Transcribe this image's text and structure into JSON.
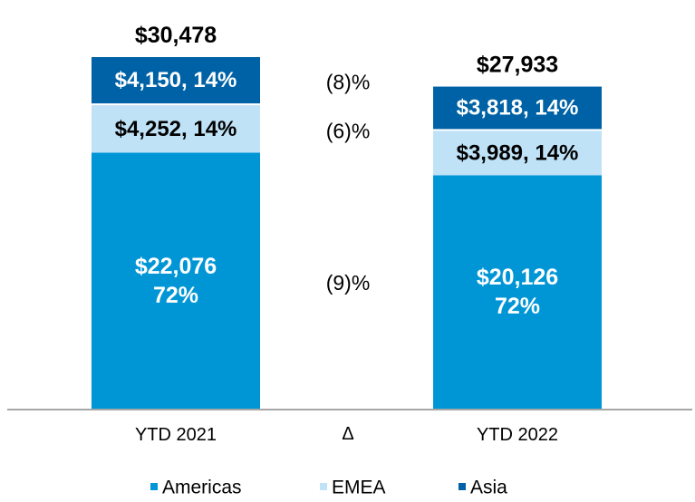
{
  "chart_data": {
    "type": "bar",
    "stacked": true,
    "categories": [
      "YTD 2021",
      "YTD 2022"
    ],
    "series": [
      {
        "name": "Americas",
        "color": "#0096d6",
        "values": [
          22076,
          20126
        ],
        "percents": [
          "72%",
          "72%"
        ],
        "labels": [
          [
            "$22,076",
            "72%"
          ],
          [
            "$20,126",
            "72%"
          ]
        ],
        "delta": "(9)%"
      },
      {
        "name": "EMEA",
        "color": "#bfe2f7",
        "values": [
          4252,
          3989
        ],
        "percents": [
          "14%",
          "14%"
        ],
        "labels": [
          [
            "$4,252, 14%"
          ],
          [
            "$3,989, 14%"
          ]
        ],
        "delta": "(6)%"
      },
      {
        "name": "Asia",
        "color": "#0062a6",
        "values": [
          4150,
          3818
        ],
        "percents": [
          "14%",
          "14%"
        ],
        "labels": [
          [
            "$4,150, 14%"
          ],
          [
            "$3,818, 14%"
          ]
        ],
        "delta": "(8)%"
      }
    ],
    "totals": [
      30478,
      27933
    ],
    "total_labels": [
      "$30,478",
      "$27,933"
    ],
    "delta_header": "Δ",
    "legend_position": "bottom",
    "grid": false,
    "ylim": [
      0,
      30478
    ]
  }
}
